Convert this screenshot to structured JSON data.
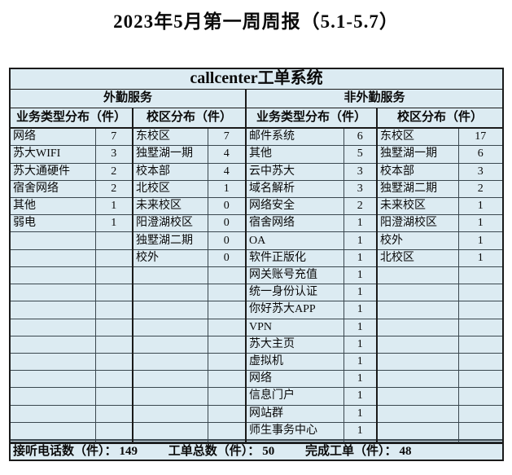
{
  "page_title": "2023年5月第一周周报（5.1-5.7）",
  "table": {
    "title": "callcenter工单系统",
    "body_rows": 21,
    "sections": [
      {
        "title": "外勤服务",
        "column_headers": [
          "业务类型分布（件）",
          "校区分布（件）"
        ],
        "business_types": [
          {
            "name": "网络",
            "count": 7
          },
          {
            "name": "苏大WIFI",
            "count": 3
          },
          {
            "name": "苏大通硬件",
            "count": 2
          },
          {
            "name": "宿舍网络",
            "count": 2
          },
          {
            "name": "其他",
            "count": 1
          },
          {
            "name": "弱电",
            "count": 1
          }
        ],
        "campuses": [
          {
            "name": "东校区",
            "count": 7
          },
          {
            "name": "独墅湖一期",
            "count": 4
          },
          {
            "name": "校本部",
            "count": 4
          },
          {
            "name": "北校区",
            "count": 1
          },
          {
            "name": "未来校区",
            "count": 0
          },
          {
            "name": "阳澄湖校区",
            "count": 0
          },
          {
            "name": "独墅湖二期",
            "count": 0
          },
          {
            "name": "校外",
            "count": 0
          }
        ]
      },
      {
        "title": "非外勤服务",
        "column_headers": [
          "业务类型分布（件）",
          "校区分布（件）"
        ],
        "business_types": [
          {
            "name": "邮件系统",
            "count": 6
          },
          {
            "name": "其他",
            "count": 5
          },
          {
            "name": "云中苏大",
            "count": 3
          },
          {
            "name": "域名解析",
            "count": 3
          },
          {
            "name": "网络安全",
            "count": 2
          },
          {
            "name": "宿舍网络",
            "count": 1
          },
          {
            "name": "OA",
            "count": 1
          },
          {
            "name": "软件正版化",
            "count": 1
          },
          {
            "name": "网关账号充值",
            "count": 1
          },
          {
            "name": "统一身份认证",
            "count": 1
          },
          {
            "name": "你好苏大APP",
            "count": 1
          },
          {
            "name": "VPN",
            "count": 1
          },
          {
            "name": "苏大主页",
            "count": 1
          },
          {
            "name": "虚拟机",
            "count": 1
          },
          {
            "name": "网络",
            "count": 1
          },
          {
            "name": "信息门户",
            "count": 1
          },
          {
            "name": "网站群",
            "count": 1
          },
          {
            "name": "师生事务中心",
            "count": 1
          }
        ],
        "campuses": [
          {
            "name": "东校区",
            "count": 17
          },
          {
            "name": "独墅湖一期",
            "count": 6
          },
          {
            "name": "校本部",
            "count": 3
          },
          {
            "name": "独墅湖二期",
            "count": 2
          },
          {
            "name": "未来校区",
            "count": 1
          },
          {
            "name": "阳澄湖校区",
            "count": 1
          },
          {
            "name": "校外",
            "count": 1
          },
          {
            "name": "北校区",
            "count": 1
          }
        ]
      }
    ]
  },
  "footer": {
    "stats": [
      {
        "label": "接听电话数（件）：",
        "value": "149"
      },
      {
        "label": "工单总数（件）：",
        "value": "50"
      },
      {
        "label": "完成工单（件）：",
        "value": "48"
      }
    ]
  },
  "colors": {
    "cell_bg": "#dcebf2",
    "grid_line": "#3a474f",
    "frame": "#1a1a1a",
    "text": "#0a0a0a"
  }
}
